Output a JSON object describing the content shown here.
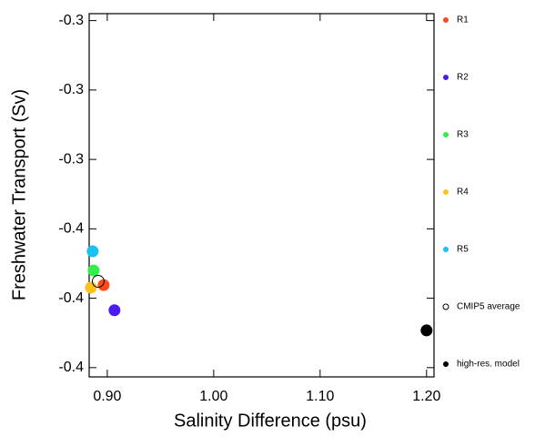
{
  "chart_data": {
    "type": "scatter",
    "xlabel": "Salinity Difference (psu)",
    "ylabel": "Freshwater Transport (Sv)",
    "xlim": [
      0.883,
      1.207
    ],
    "xticks": [
      {
        "value": 0.9,
        "label": "0.90"
      },
      {
        "value": 1.0,
        "label": "1.00"
      },
      {
        "value": 1.1,
        "label": "1.10"
      },
      {
        "value": 1.2,
        "label": "1.20"
      }
    ],
    "ylim": [
      -0.414,
      -0.257
    ],
    "yticks": [
      {
        "value": -0.26,
        "label": "-0.3"
      },
      {
        "value": -0.29,
        "label": "-0.3"
      },
      {
        "value": -0.32,
        "label": "-0.3"
      },
      {
        "value": -0.35,
        "label": "-0.4"
      },
      {
        "value": -0.38,
        "label": "-0.4"
      },
      {
        "value": -0.41,
        "label": "-0.4"
      }
    ],
    "legend": "right",
    "series": [
      {
        "name": "R1",
        "color": "#ff4a1a",
        "x": [
          0.8966
        ],
        "values": [
          -0.3743
        ]
      },
      {
        "name": "R2",
        "color": "#4a1aee",
        "x": [
          0.9068
        ],
        "values": [
          -0.3852
        ]
      },
      {
        "name": "R3",
        "color": "#33ee4a",
        "x": [
          0.8872
        ],
        "values": [
          -0.368
        ]
      },
      {
        "name": "R4",
        "color": "#ffc21a",
        "x": [
          0.8846
        ],
        "values": [
          -0.3754
        ]
      },
      {
        "name": "R5",
        "color": "#1ac2f0",
        "x": [
          0.8863
        ],
        "values": [
          -0.3597
        ]
      },
      {
        "name": "CMIP5 average",
        "color": "#000000",
        "hollow": true,
        "x": [
          0.8915
        ],
        "values": [
          -0.3727
        ]
      },
      {
        "name": "high-res. model",
        "color": "#000000",
        "x": [
          1.2
        ],
        "values": [
          -0.3939
        ]
      }
    ]
  }
}
